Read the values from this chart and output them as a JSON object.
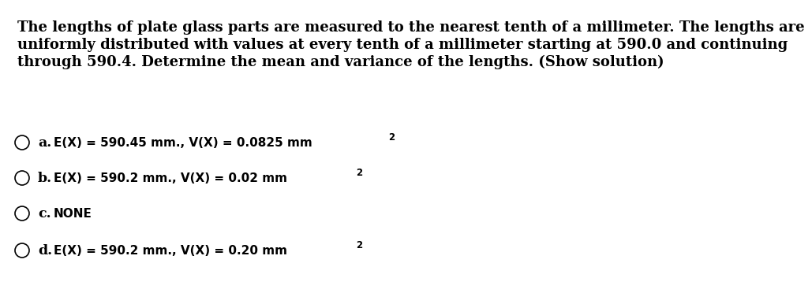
{
  "background_color": "#ffffff",
  "question_text_line1": "The lengths of plate glass parts are measured to the nearest tenth of a millimeter. The lengths are",
  "question_text_line2": "uniformly distributed with values at every tenth of a millimeter starting at 590.0 and continuing",
  "question_text_line3": "through 590.4. Determine the mean and variance of the lengths. (Show solution)",
  "options": [
    {
      "label": "a.",
      "main_text": "E(X) = 590.45 mm., V(X) = 0.0825 mm",
      "superscript": "2"
    },
    {
      "label": "b.",
      "main_text": "E(X) = 590.2 mm., V(X) = 0.02 mm",
      "superscript": "2"
    },
    {
      "label": "c.",
      "main_text": "NONE",
      "superscript": ""
    },
    {
      "label": "d.",
      "main_text": "E(X) = 590.2 mm., V(X) = 0.20 mm",
      "superscript": "2"
    }
  ],
  "question_fontsize": 13.0,
  "option_label_fontsize": 12.5,
  "option_text_fontsize": 11.0,
  "superscript_fontsize": 8.5,
  "text_color": "#000000",
  "question_font_family": "DejaVu Serif",
  "option_font_family": "DejaVu Sans"
}
